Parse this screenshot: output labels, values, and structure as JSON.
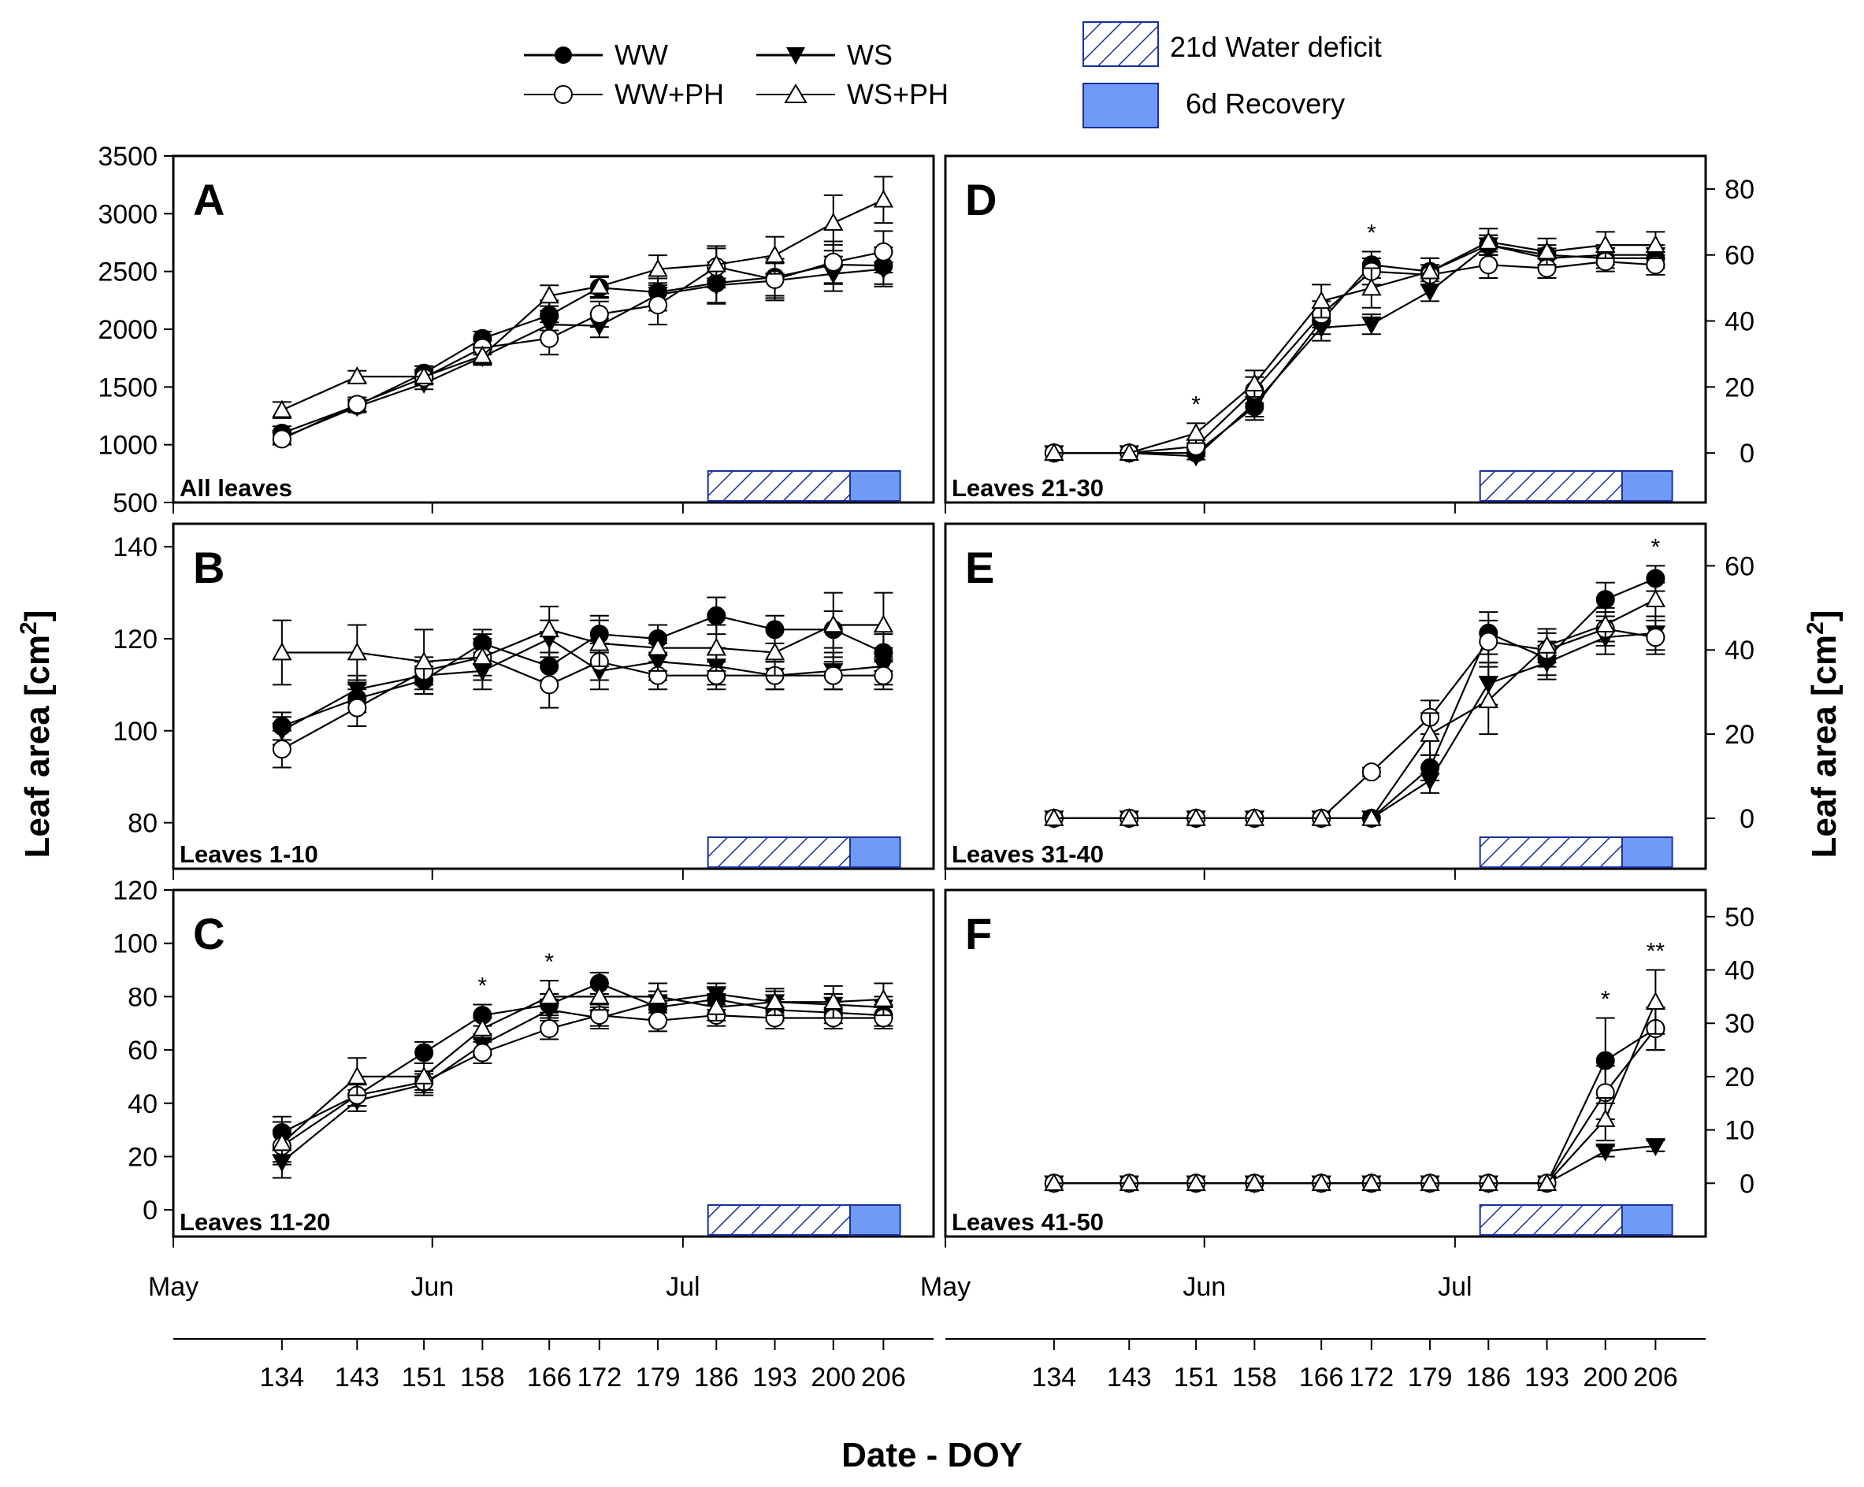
{
  "figure": {
    "ylabel_left": "Leaf area [cm2]",
    "ylabel_right": "Leaf area [cm2]",
    "xlabel": "Date - DOY",
    "month_labels": [
      "May",
      "Jun",
      "Jul"
    ],
    "doy_ticks": [
      134,
      143,
      151,
      158,
      166,
      172,
      179,
      186,
      193,
      200,
      206
    ]
  },
  "legend": {
    "ww": "WW",
    "ws": "WS",
    "ww_ph": "WW+PH",
    "ws_ph": "WS+PH",
    "deficit": "21d Water deficit",
    "recovery": "6d Recovery"
  },
  "colors": {
    "recovery_fill": "#6f9bf6",
    "deficit_hatch": "#1a2fa0",
    "series_line": "#000000"
  },
  "chart_data": [
    {
      "id": "A",
      "type": "line",
      "letter": "A",
      "subtitle": "All leaves",
      "ylim": [
        500,
        3500
      ],
      "yticks": [
        500,
        1000,
        1500,
        2000,
        2500,
        3000,
        3500
      ],
      "x": [
        134,
        143,
        151,
        158,
        166,
        172,
        179,
        186,
        193,
        200,
        206
      ],
      "deficit_doy": [
        185,
        202
      ],
      "recovery_doy": [
        202,
        208
      ],
      "series": [
        {
          "name": "WW",
          "values": [
            1100,
            1340,
            1620,
            1920,
            2120,
            2360,
            2320,
            2400,
            2450,
            2560,
            2550
          ],
          "err": [
            60,
            50,
            60,
            60,
            130,
            90,
            120,
            180,
            160,
            170,
            160
          ]
        },
        {
          "name": "WS",
          "values": [
            1060,
            1330,
            1530,
            1760,
            2040,
            2030,
            2300,
            2380,
            2420,
            2480,
            2520
          ],
          "err": [
            50,
            50,
            50,
            70,
            120,
            100,
            140,
            150,
            150,
            150,
            150
          ]
        },
        {
          "name": "WW+PH",
          "values": [
            1050,
            1350,
            1580,
            1840,
            1920,
            2130,
            2210,
            2540,
            2430,
            2580,
            2670
          ],
          "err": [
            50,
            60,
            60,
            60,
            140,
            110,
            170,
            180,
            180,
            180,
            180
          ]
        },
        {
          "name": "WS+PH",
          "values": [
            1300,
            1590,
            1590,
            1770,
            2290,
            2370,
            2520,
            2560,
            2640,
            2920,
            3120
          ],
          "err": [
            70,
            50,
            60,
            70,
            90,
            90,
            120,
            140,
            160,
            240,
            200
          ]
        }
      ],
      "annotations": []
    },
    {
      "id": "B",
      "type": "line",
      "letter": "B",
      "subtitle": "Leaves 1-10",
      "ylim": [
        70,
        145
      ],
      "yticks": [
        80,
        100,
        120,
        140
      ],
      "x": [
        134,
        143,
        151,
        158,
        166,
        172,
        179,
        186,
        193,
        200,
        206
      ],
      "deficit_doy": [
        185,
        202
      ],
      "recovery_doy": [
        202,
        208
      ],
      "series": [
        {
          "name": "WW",
          "values": [
            101,
            107,
            111,
            119,
            114,
            121,
            120,
            125,
            122,
            122,
            117
          ],
          "err": [
            3,
            3,
            3,
            3,
            3,
            4,
            3,
            4,
            3,
            4,
            4
          ]
        },
        {
          "name": "WS",
          "values": [
            100,
            109,
            112,
            113,
            120,
            113,
            115,
            114,
            112,
            113,
            114
          ],
          "err": [
            3,
            3,
            3,
            4,
            4,
            4,
            4,
            4,
            3,
            4,
            4
          ]
        },
        {
          "name": "WW+PH",
          "values": [
            96,
            105,
            113,
            116,
            110,
            115,
            112,
            112,
            112,
            112,
            112
          ],
          "err": [
            4,
            4,
            3,
            4,
            5,
            4,
            3,
            3,
            3,
            3,
            3
          ]
        },
        {
          "name": "WS+PH",
          "values": [
            117,
            117,
            115,
            116,
            122,
            119,
            118,
            118,
            117,
            123,
            123
          ],
          "err": [
            7,
            6,
            7,
            5,
            5,
            5,
            5,
            5,
            5,
            7,
            7
          ]
        }
      ],
      "annotations": []
    },
    {
      "id": "C",
      "type": "line",
      "letter": "C",
      "subtitle": "Leaves 11-20",
      "ylim": [
        -10,
        120
      ],
      "yticks": [
        0,
        20,
        40,
        60,
        80,
        100,
        120
      ],
      "x": [
        134,
        143,
        151,
        158,
        166,
        172,
        179,
        186,
        193,
        200,
        206
      ],
      "deficit_doy": [
        185,
        202
      ],
      "recovery_doy": [
        202,
        208
      ],
      "series": [
        {
          "name": "WW",
          "values": [
            29,
            43,
            59,
            73,
            77,
            85,
            76,
            79,
            75,
            74,
            73
          ],
          "err": [
            6,
            4,
            4,
            4,
            4,
            4,
            4,
            4,
            4,
            4,
            4
          ]
        },
        {
          "name": "WS",
          "values": [
            18,
            41,
            47,
            62,
            75,
            72,
            78,
            81,
            78,
            77,
            76
          ],
          "err": [
            6,
            4,
            4,
            4,
            4,
            4,
            4,
            4,
            4,
            4,
            4
          ]
        },
        {
          "name": "WW+PH",
          "values": [
            24,
            43,
            48,
            59,
            68,
            73,
            71,
            73,
            72,
            72,
            72
          ],
          "err": [
            6,
            4,
            4,
            4,
            4,
            4,
            4,
            4,
            4,
            4,
            4
          ]
        },
        {
          "name": "WS+PH",
          "values": [
            25,
            50,
            50,
            68,
            80,
            80,
            80,
            76,
            78,
            78,
            79
          ],
          "err": [
            8,
            7,
            5,
            4,
            6,
            5,
            5,
            5,
            5,
            6,
            6
          ]
        }
      ],
      "annotations": [
        {
          "x": 158,
          "text": "*"
        },
        {
          "x": 166,
          "text": "*"
        }
      ]
    },
    {
      "id": "D",
      "type": "line",
      "letter": "D",
      "subtitle": "Leaves 21-30",
      "ylim": [
        -15,
        90
      ],
      "yticks": [
        0,
        20,
        40,
        60,
        80
      ],
      "x": [
        134,
        143,
        151,
        158,
        166,
        172,
        179,
        186,
        193,
        200,
        206
      ],
      "deficit_doy": [
        185,
        202
      ],
      "recovery_doy": [
        202,
        208
      ],
      "series": [
        {
          "name": "WW",
          "values": [
            0,
            0,
            0,
            14,
            40,
            57,
            55,
            63,
            60,
            59,
            59
          ],
          "err": [
            0,
            0,
            1,
            4,
            4,
            4,
            4,
            3,
            3,
            3,
            3
          ]
        },
        {
          "name": "WS",
          "values": [
            0,
            0,
            -1,
            15,
            38,
            39,
            49,
            63,
            59,
            60,
            60
          ],
          "err": [
            0,
            0,
            1,
            4,
            4,
            3,
            3,
            3,
            3,
            3,
            3
          ]
        },
        {
          "name": "WW+PH",
          "values": [
            0,
            0,
            2,
            19,
            42,
            55,
            54,
            57,
            56,
            58,
            57
          ],
          "err": [
            0,
            0,
            2,
            4,
            4,
            4,
            3,
            4,
            3,
            3,
            3
          ]
        },
        {
          "name": "WS+PH",
          "values": [
            0,
            0,
            6,
            21,
            46,
            50,
            55,
            64,
            61,
            63,
            63
          ],
          "err": [
            0,
            0,
            3,
            4,
            5,
            6,
            4,
            4,
            4,
            4,
            4
          ]
        }
      ],
      "annotations": [
        {
          "x": 151,
          "text": "*"
        },
        {
          "x": 172,
          "text": "*"
        }
      ]
    },
    {
      "id": "E",
      "type": "line",
      "letter": "E",
      "subtitle": "Leaves 31-40",
      "ylim": [
        -12,
        70
      ],
      "yticks": [
        0,
        20,
        40,
        60
      ],
      "x": [
        134,
        143,
        151,
        158,
        166,
        172,
        179,
        186,
        193,
        200,
        206
      ],
      "deficit_doy": [
        185,
        202
      ],
      "recovery_doy": [
        202,
        208
      ],
      "series": [
        {
          "name": "WW",
          "values": [
            0,
            0,
            0,
            0,
            0,
            0,
            12,
            44,
            38,
            52,
            57
          ],
          "err": [
            0,
            0,
            0,
            0,
            0,
            0,
            3,
            5,
            4,
            4,
            3
          ]
        },
        {
          "name": "WS",
          "values": [
            0,
            0,
            0,
            0,
            0,
            0,
            9,
            32,
            37,
            43,
            44
          ],
          "err": [
            0,
            0,
            0,
            0,
            0,
            0,
            3,
            5,
            4,
            4,
            4
          ]
        },
        {
          "name": "WW+PH",
          "values": [
            0,
            0,
            0,
            0,
            0,
            11,
            24,
            42,
            40,
            45,
            43
          ],
          "err": [
            0,
            0,
            0,
            0,
            0,
            1,
            4,
            5,
            4,
            4,
            4
          ]
        },
        {
          "name": "WS+PH",
          "values": [
            0,
            0,
            0,
            0,
            0,
            0,
            20,
            28,
            41,
            46,
            52
          ],
          "err": [
            0,
            0,
            0,
            0,
            0,
            0,
            5,
            8,
            4,
            4,
            4
          ]
        }
      ],
      "annotations": [
        {
          "x": 206,
          "text": "*"
        }
      ]
    },
    {
      "id": "F",
      "type": "line",
      "letter": "F",
      "subtitle": "Leaves 41-50",
      "ylim": [
        -10,
        55
      ],
      "yticks": [
        0,
        10,
        20,
        30,
        40,
        50
      ],
      "x": [
        134,
        143,
        151,
        158,
        166,
        172,
        179,
        186,
        193,
        200,
        206
      ],
      "deficit_doy": [
        185,
        202
      ],
      "recovery_doy": [
        202,
        208
      ],
      "series": [
        {
          "name": "WW",
          "values": [
            0,
            0,
            0,
            0,
            0,
            0,
            0,
            0,
            0,
            23,
            29
          ],
          "err": [
            0,
            0,
            0,
            0,
            0,
            0,
            0,
            0,
            0,
            8,
            4
          ]
        },
        {
          "name": "WS",
          "values": [
            0,
            0,
            0,
            0,
            0,
            0,
            0,
            0,
            0,
            6,
            7
          ],
          "err": [
            0,
            0,
            0,
            0,
            0,
            0,
            0,
            0,
            0,
            1,
            1
          ]
        },
        {
          "name": "WW+PH",
          "values": [
            0,
            0,
            0,
            0,
            0,
            0,
            0,
            0,
            0,
            17,
            29
          ],
          "err": [
            0,
            0,
            0,
            0,
            0,
            0,
            0,
            0,
            0,
            5,
            4
          ]
        },
        {
          "name": "WS+PH",
          "values": [
            0,
            0,
            0,
            0,
            0,
            0,
            0,
            0,
            0,
            12,
            34
          ],
          "err": [
            0,
            0,
            0,
            0,
            0,
            0,
            0,
            0,
            0,
            4,
            6
          ]
        }
      ],
      "annotations": [
        {
          "x": 200,
          "text": "*"
        },
        {
          "x": 206,
          "text": "**"
        }
      ]
    }
  ]
}
